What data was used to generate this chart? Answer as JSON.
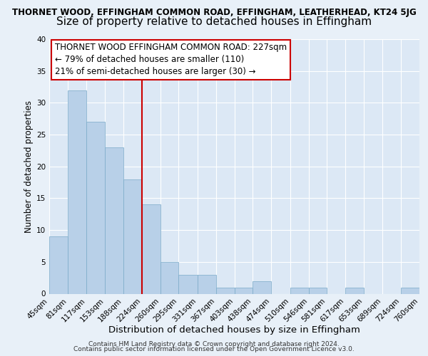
{
  "title1": "THORNET WOOD, EFFINGHAM COMMON ROAD, EFFINGHAM, LEATHERHEAD, KT24 5JG",
  "title2": "Size of property relative to detached houses in Effingham",
  "xlabel": "Distribution of detached houses by size in Effingham",
  "ylabel": "Number of detached properties",
  "bar_values": [
    9,
    32,
    27,
    23,
    18,
    14,
    5,
    3,
    3,
    1,
    1,
    2,
    0,
    1,
    1,
    0,
    1,
    0,
    0,
    1
  ],
  "bin_edges": [
    45,
    81,
    117,
    153,
    188,
    224,
    260,
    295,
    331,
    367,
    403,
    438,
    474,
    510,
    546,
    581,
    617,
    653,
    689,
    724,
    760
  ],
  "x_labels": [
    "45sqm",
    "81sqm",
    "117sqm",
    "153sqm",
    "188sqm",
    "224sqm",
    "260sqm",
    "295sqm",
    "331sqm",
    "367sqm",
    "403sqm",
    "438sqm",
    "474sqm",
    "510sqm",
    "546sqm",
    "581sqm",
    "617sqm",
    "653sqm",
    "689sqm",
    "724sqm",
    "760sqm"
  ],
  "bar_color": "#b8d0e8",
  "bar_edge_color": "#7aaac8",
  "vline_x": 224,
  "vline_color": "#cc0000",
  "annotation_text": "THORNET WOOD EFFINGHAM COMMON ROAD: 227sqm\n← 79% of detached houses are smaller (110)\n21% of semi-detached houses are larger (30) →",
  "annotation_box_color": "#ffffff",
  "annotation_box_edge": "#cc0000",
  "ylim": [
    0,
    40
  ],
  "yticks": [
    0,
    5,
    10,
    15,
    20,
    25,
    30,
    35,
    40
  ],
  "footer_text1": "Contains HM Land Registry data © Crown copyright and database right 2024.",
  "footer_text2": "Contains public sector information licensed under the Open Government Licence v3.0.",
  "bg_color": "#e8f0f8",
  "plot_bg_color": "#dce8f5",
  "grid_color": "#ffffff",
  "title1_fontsize": 8.5,
  "title2_fontsize": 11,
  "xlabel_fontsize": 9.5,
  "ylabel_fontsize": 8.5,
  "tick_fontsize": 7.5,
  "annot_fontsize": 8.5,
  "footer_fontsize": 6.5
}
